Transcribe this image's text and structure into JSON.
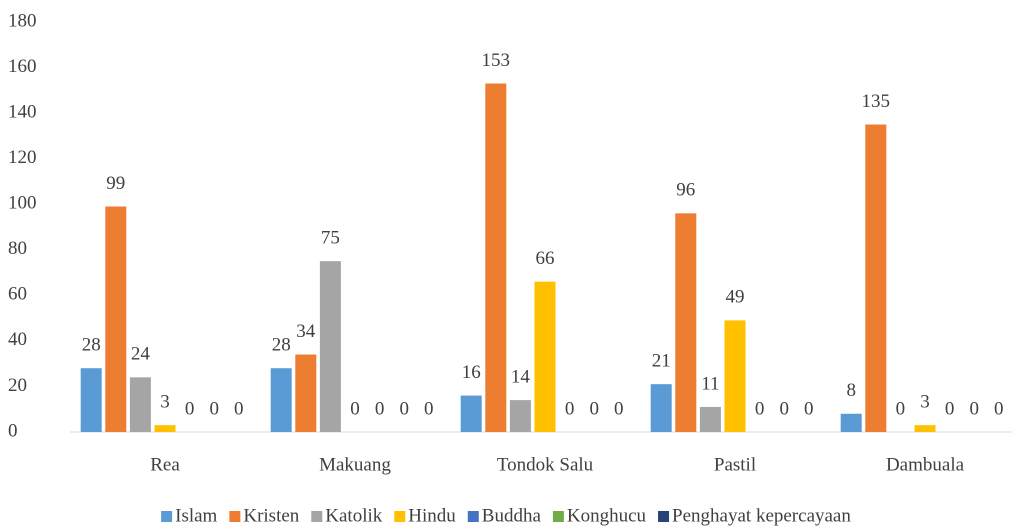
{
  "chart_data": {
    "type": "bar",
    "categories": [
      "Rea",
      "Makuang",
      "Tondok Salu",
      "Pastil",
      "Dambuala"
    ],
    "series": [
      {
        "name": "Islam",
        "color": "#5b9bd5",
        "values": [
          28,
          28,
          16,
          21,
          8
        ]
      },
      {
        "name": "Kristen",
        "color": "#ed7d31",
        "values": [
          99,
          34,
          153,
          96,
          135
        ]
      },
      {
        "name": "Katolik",
        "color": "#a5a5a5",
        "values": [
          24,
          75,
          14,
          11,
          0
        ]
      },
      {
        "name": "Hindu",
        "color": "#ffc000",
        "values": [
          3,
          0,
          66,
          49,
          3
        ]
      },
      {
        "name": "Buddha",
        "color": "#4472c4",
        "values": [
          0,
          0,
          0,
          0,
          0
        ]
      },
      {
        "name": "Konghucu",
        "color": "#70ad47",
        "values": [
          0,
          0,
          0,
          0,
          0
        ]
      },
      {
        "name": "Penghayat kepercayaan",
        "color": "#264478",
        "values": [
          0,
          0,
          0,
          0,
          0
        ]
      }
    ],
    "ylim": [
      0,
      180
    ],
    "yticks": [
      0,
      20,
      40,
      60,
      80,
      100,
      120,
      140,
      160,
      180
    ],
    "grid": false,
    "legend": "bottom"
  }
}
